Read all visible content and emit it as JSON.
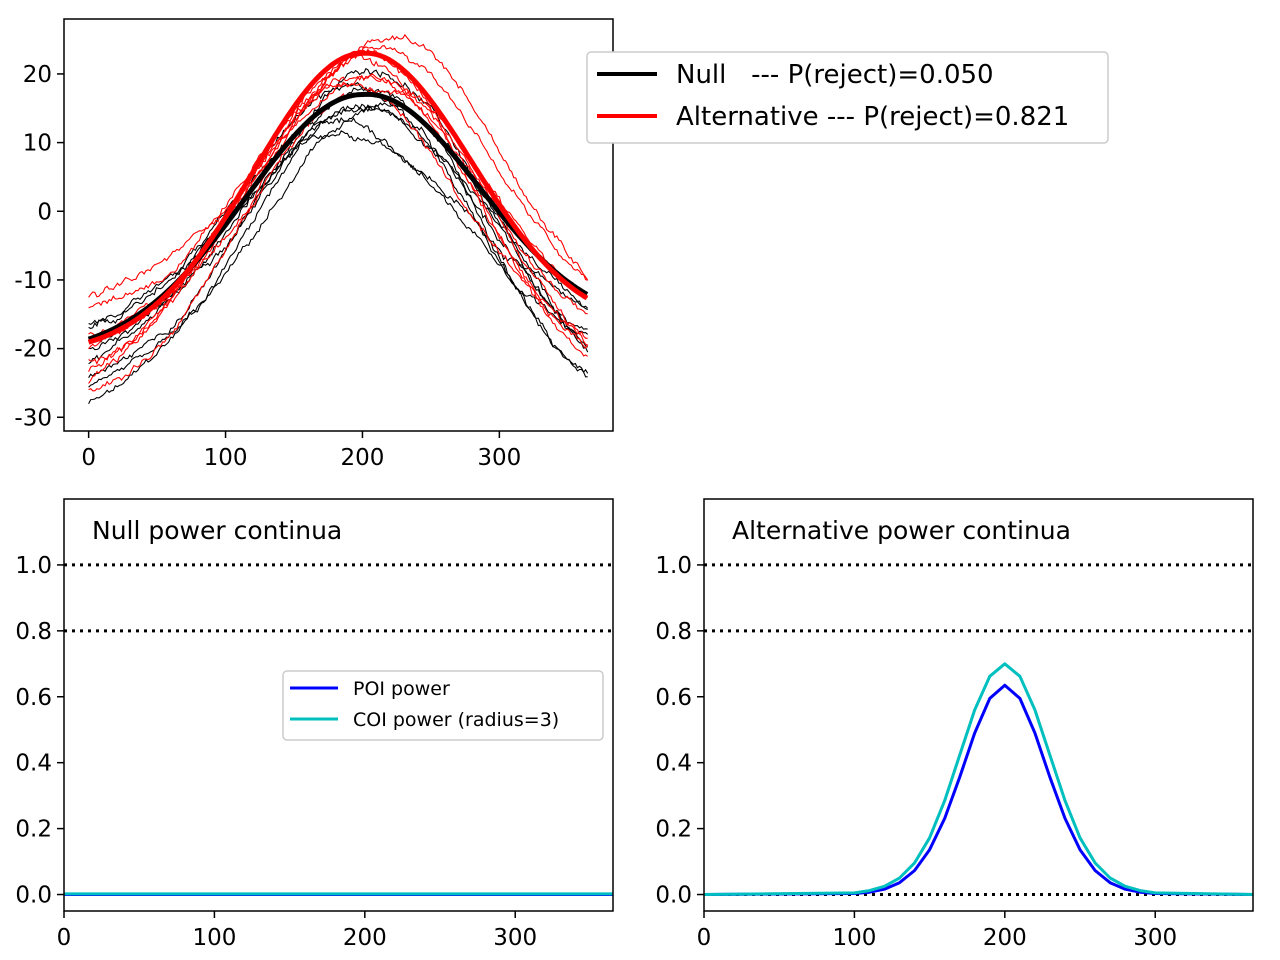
{
  "figure": {
    "background": "#ffffff"
  },
  "chart_data": [
    {
      "id": "top",
      "type": "line",
      "title": "",
      "xlabel": "",
      "ylabel": "",
      "xlim": [
        -18,
        383
      ],
      "ylim": [
        -32,
        28
      ],
      "xticks": [
        0,
        100,
        200,
        300
      ],
      "yticks": [
        -30,
        -20,
        -10,
        0,
        10,
        20
      ],
      "legend": {
        "placement": "upper-right, outside the axes",
        "entries": [
          {
            "label": "Null   --- P(reject)=0.050",
            "color": "#000000"
          },
          {
            "label": "Alternative --- P(reject)=0.821",
            "color": "#ff0000"
          }
        ]
      },
      "mean_curves": [
        {
          "name": "Null",
          "color": "#000000",
          "baseline": -21,
          "amplitude": 38,
          "center": 200,
          "sigma": 85
        },
        {
          "name": "Alternative",
          "color": "#ff0000",
          "baseline": -21,
          "amplitude": 44,
          "center": 200,
          "sigma": 80
        }
      ],
      "random_samples": [
        {
          "color": "#000000",
          "count": 8,
          "note": "thin random sample curves around Null mean"
        },
        {
          "color": "#ff0000",
          "count": 8,
          "note": "thin random sample curves around Alternative mean"
        }
      ],
      "random_sample_curves": [
        {
          "color": "#000000",
          "y_start": -28,
          "y_peak": 18,
          "y_end": -25,
          "x_peak": 205
        },
        {
          "color": "#000000",
          "y_start": -16,
          "y_peak": 10.5,
          "y_end": -14,
          "x_peak": 195
        },
        {
          "color": "#000000",
          "y_start": -24,
          "y_peak": 20.5,
          "y_end": -22,
          "x_peak": 210
        },
        {
          "color": "#000000",
          "y_start": -19,
          "y_peak": 15,
          "y_end": -13,
          "x_peak": 200
        },
        {
          "color": "#000000",
          "y_start": -22,
          "y_peak": 19,
          "y_end": -18,
          "x_peak": 190
        },
        {
          "color": "#000000",
          "y_start": -26,
          "y_peak": 14,
          "y_end": -20,
          "x_peak": 215
        },
        {
          "color": "#000000",
          "y_start": -20,
          "y_peak": 17,
          "y_end": -24,
          "x_peak": 205
        },
        {
          "color": "#000000",
          "y_start": -17,
          "y_peak": 12.5,
          "y_end": -16,
          "x_peak": 185
        },
        {
          "color": "#ff0000",
          "y_start": -12.5,
          "y_peak": 24.5,
          "y_end": -9.5,
          "x_peak": 220
        },
        {
          "color": "#ff0000",
          "y_start": -26,
          "y_peak": 22,
          "y_end": -22,
          "x_peak": 205
        },
        {
          "color": "#ff0000",
          "y_start": -22,
          "y_peak": 20.5,
          "y_end": -15,
          "x_peak": 200
        },
        {
          "color": "#ff0000",
          "y_start": -25,
          "y_peak": 23.5,
          "y_end": -20,
          "x_peak": 195
        },
        {
          "color": "#ff0000",
          "y_start": -18,
          "y_peak": 19,
          "y_end": -12,
          "x_peak": 210
        },
        {
          "color": "#ff0000",
          "y_start": -20,
          "y_peak": 21.5,
          "y_end": -18,
          "x_peak": 205
        },
        {
          "color": "#ff0000",
          "y_start": -14,
          "y_peak": 22.5,
          "y_end": -11,
          "x_peak": 215
        },
        {
          "color": "#ff0000",
          "y_start": -23,
          "y_peak": 18.5,
          "y_end": -21,
          "x_peak": 190
        }
      ]
    },
    {
      "id": "bottom-left",
      "type": "line",
      "title": "Null power continua",
      "xlabel": "",
      "ylabel": "",
      "xlim": [
        0,
        365
      ],
      "ylim": [
        -0.05,
        1.2
      ],
      "xticks": [
        0,
        100,
        200,
        300
      ],
      "yticks": [
        0.0,
        0.2,
        0.4,
        0.6,
        0.8,
        1.0
      ],
      "reference_lines": [
        {
          "y": 0.8
        },
        {
          "y": 1.0
        }
      ],
      "legend": {
        "placement": "center-right",
        "entries": [
          {
            "label": "POI power",
            "color": "#0000ff"
          },
          {
            "label": "COI power (radius=3)",
            "color": "#00bfbf"
          }
        ]
      },
      "series": [
        {
          "name": "POI power",
          "color": "#0000ff",
          "x": [
            0,
            365
          ],
          "y": [
            0.0,
            0.0
          ]
        },
        {
          "name": "COI power (radius=3)",
          "color": "#00bfbf",
          "x": [
            0,
            365
          ],
          "y": [
            0.002,
            0.002
          ]
        }
      ]
    },
    {
      "id": "bottom-right",
      "type": "line",
      "title": "Alternative power continua",
      "xlabel": "",
      "ylabel": "",
      "xlim": [
        0,
        365
      ],
      "ylim": [
        -0.05,
        1.2
      ],
      "xticks": [
        0,
        100,
        200,
        300
      ],
      "yticks": [
        0.0,
        0.2,
        0.4,
        0.6,
        0.8,
        1.0
      ],
      "reference_lines": [
        {
          "y": 0.0
        },
        {
          "y": 0.8
        },
        {
          "y": 1.0
        }
      ],
      "series": [
        {
          "name": "POI power",
          "color": "#0000ff",
          "x": [
            0,
            100,
            110,
            120,
            130,
            140,
            150,
            160,
            170,
            180,
            190,
            200,
            210,
            220,
            230,
            240,
            250,
            260,
            270,
            280,
            290,
            300,
            365
          ],
          "y": [
            0.0,
            0.003,
            0.007,
            0.016,
            0.036,
            0.073,
            0.136,
            0.231,
            0.356,
            0.49,
            0.595,
            0.635,
            0.595,
            0.49,
            0.356,
            0.231,
            0.136,
            0.073,
            0.036,
            0.016,
            0.007,
            0.003,
            0.0
          ]
        },
        {
          "name": "COI power (radius=3)",
          "color": "#00bfbf",
          "x": [
            0,
            100,
            110,
            120,
            130,
            140,
            150,
            160,
            170,
            180,
            190,
            200,
            210,
            220,
            230,
            240,
            250,
            260,
            270,
            280,
            290,
            300,
            365
          ],
          "y": [
            0.0,
            0.005,
            0.012,
            0.025,
            0.05,
            0.096,
            0.172,
            0.285,
            0.423,
            0.56,
            0.662,
            0.7,
            0.662,
            0.56,
            0.423,
            0.285,
            0.172,
            0.096,
            0.05,
            0.025,
            0.012,
            0.005,
            0.0
          ]
        }
      ]
    }
  ]
}
